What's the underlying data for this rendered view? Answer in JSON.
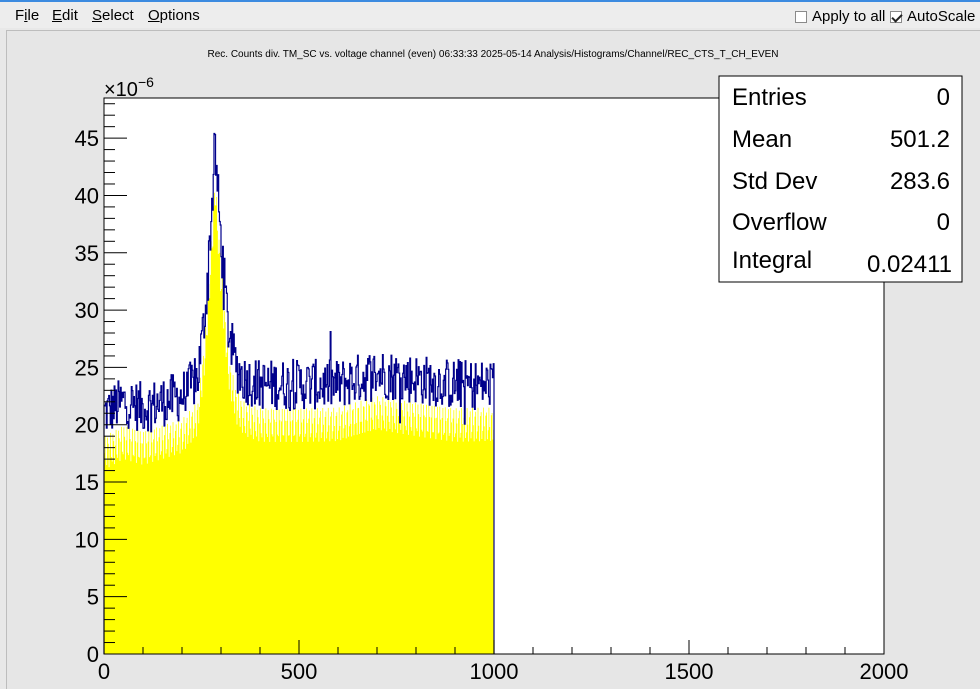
{
  "menu": {
    "file": "File",
    "edit": "Edit",
    "select": "Select",
    "options": "Options"
  },
  "toolbar": {
    "apply_to_all": "Apply to all",
    "apply_to_all_checked": false,
    "autoscale": "AutoScale",
    "autoscale_checked": true
  },
  "stats": {
    "entries_label": "Entries",
    "entries_value": "0",
    "mean_label": "Mean",
    "mean_value": "501.2",
    "stddev_label": "Std Dev",
    "stddev_value": "283.6",
    "overflow_label": "Overflow",
    "overflow_value": "0",
    "integral_label": "Integral",
    "integral_value": "0.02411"
  },
  "chart_data": {
    "type": "histogram",
    "title": "Rec. Counts div. TM_SC vs. voltage channel (even)  06:33:33  2025-05-14  Analysis/Histograms/Channel/REC_CTS_T_CH_EVEN",
    "xlabel": "",
    "ylabel": "",
    "y_exponent_label": "×10",
    "y_exponent": "−6",
    "xlim": [
      0,
      2000
    ],
    "ylim": [
      0,
      48.5
    ],
    "x_ticks": [
      0,
      500,
      1000,
      1500,
      2000
    ],
    "y_ticks": [
      0,
      5,
      10,
      15,
      20,
      25,
      30,
      35,
      40,
      45
    ],
    "fill_color": "#ffff00",
    "line_color": "#00008b",
    "profile": {
      "x": [
        0,
        50,
        100,
        150,
        200,
        240,
        260,
        275,
        285,
        300,
        320,
        340,
        360,
        400,
        500,
        600,
        700,
        800,
        900,
        1000
      ],
      "y": [
        21,
        22,
        21.5,
        22,
        22.5,
        24,
        30,
        38,
        44,
        36,
        28,
        25,
        24,
        23.5,
        23.5,
        23.5,
        24.5,
        24,
        23.5,
        23.5
      ]
    },
    "noise_amplitude": 2.2,
    "data_end_x": 1000
  }
}
